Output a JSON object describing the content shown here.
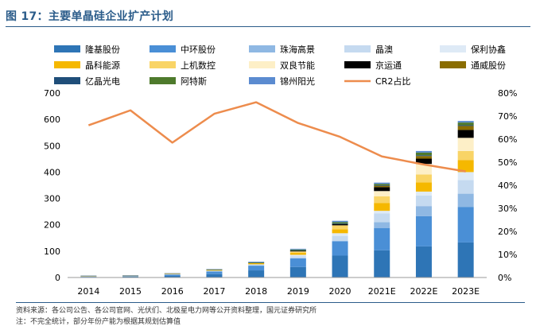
{
  "title": "图 17：主要单晶硅企业扩产计划",
  "source": "资料来源：各公司公告、各公司官网、光伏们、北极星电力网等公开资料整理，国元证券研究所",
  "note": "注：不完全统计，部分年份产能为根据其规划估算值",
  "chart_data": {
    "type": "bar",
    "stacked": true,
    "categories": [
      "2014",
      "2015",
      "2016",
      "2017",
      "2018",
      "2019",
      "2020",
      "2021E",
      "2022E",
      "2023E"
    ],
    "ylim": [
      0,
      700
    ],
    "yticks": [
      0,
      100,
      200,
      300,
      400,
      500,
      600,
      700
    ],
    "y2lim": [
      0,
      80
    ],
    "y2ticks": [
      "0%",
      "10%",
      "20%",
      "30%",
      "40%",
      "50%",
      "60%",
      "70%",
      "80%"
    ],
    "grid": false,
    "legend_position": "top",
    "series": [
      {
        "name": "隆基股份",
        "color": "#2e75b6",
        "values": [
          2,
          3,
          6,
          13,
          27,
          40,
          83,
          103,
          118,
          133
        ]
      },
      {
        "name": "中环股份",
        "color": "#4a8fd6",
        "values": [
          2,
          2,
          5,
          10,
          18,
          33,
          55,
          85,
          115,
          135
        ]
      },
      {
        "name": "珠海高景",
        "color": "#8fb8e3",
        "values": [
          0,
          0,
          0,
          0,
          0,
          0,
          0,
          22,
          38,
          50
        ]
      },
      {
        "name": "晶澳",
        "color": "#c5daf0",
        "values": [
          1,
          1,
          2,
          3,
          5,
          8,
          20,
          33,
          40,
          52
        ]
      },
      {
        "name": "保利协鑫",
        "color": "#deeaf6",
        "values": [
          0,
          0,
          0,
          0,
          0,
          5,
          10,
          10,
          15,
          30
        ]
      },
      {
        "name": "晶科能源",
        "color": "#f5b800",
        "values": [
          1,
          1,
          2,
          3,
          5,
          8,
          15,
          30,
          35,
          45
        ]
      },
      {
        "name": "上机数控",
        "color": "#f9d466",
        "values": [
          0,
          0,
          0,
          0,
          0,
          5,
          15,
          25,
          30,
          35
        ]
      },
      {
        "name": "双良节能",
        "color": "#fdefc7",
        "values": [
          0,
          0,
          0,
          0,
          0,
          0,
          0,
          20,
          40,
          50
        ]
      },
      {
        "name": "京运通",
        "color": "#000000",
        "values": [
          0,
          0,
          0,
          0,
          0,
          3,
          5,
          15,
          20,
          30
        ]
      },
      {
        "name": "通威股份",
        "color": "#8a6d00",
        "values": [
          0,
          0,
          0,
          0,
          0,
          0,
          0,
          5,
          10,
          15
        ]
      },
      {
        "name": "亿晶光电",
        "color": "#1f4e79",
        "values": [
          1,
          1,
          1,
          1,
          1,
          1,
          2,
          2,
          3,
          3
        ]
      },
      {
        "name": "阿特斯",
        "color": "#4e7a2c",
        "values": [
          0,
          0,
          0,
          1,
          2,
          3,
          5,
          5,
          10,
          10
        ]
      },
      {
        "name": "锦州阳光",
        "color": "#5b8bd0",
        "values": [
          0,
          0,
          0,
          1,
          2,
          3,
          5,
          5,
          6,
          6
        ]
      }
    ],
    "line_series": {
      "name": "CR2占比",
      "color": "#ed8c4d",
      "axis": "right",
      "values": [
        66,
        72.5,
        58.5,
        71,
        76,
        67,
        61,
        52.5,
        49,
        46
      ]
    }
  }
}
